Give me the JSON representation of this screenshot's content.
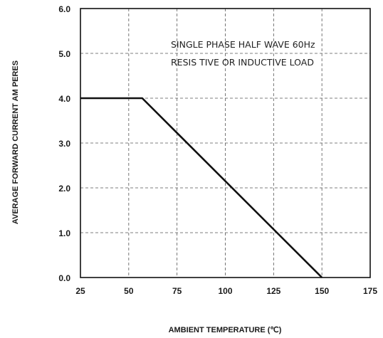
{
  "chart_data": {
    "type": "line",
    "title": "",
    "xlabel": "AMBIENT TEMPERATURE (℃)",
    "ylabel": "AVERAGE FORWARD CURRENT AM PERES",
    "xlim": [
      25,
      175
    ],
    "ylim": [
      0,
      6
    ],
    "x_ticks": [
      "25",
      "50",
      "75",
      "100",
      "125",
      "150",
      "175"
    ],
    "y_ticks": [
      "0.0",
      "1.0",
      "2.0",
      "3.0",
      "4.0",
      "5.0",
      "6.0"
    ],
    "grid": true,
    "annotations": [
      "SINGLE PHASE HALF WAVE 60Hz",
      "RESIS TIVE OR INDUCTIVE LOAD"
    ],
    "series": [
      {
        "x": [
          25,
          57,
          150
        ],
        "y": [
          4.0,
          4.0,
          0.0
        ]
      }
    ],
    "colors": {
      "line": "#111111",
      "grid": "#555555",
      "axis": "#111111",
      "text": "#1a1a1a"
    }
  }
}
